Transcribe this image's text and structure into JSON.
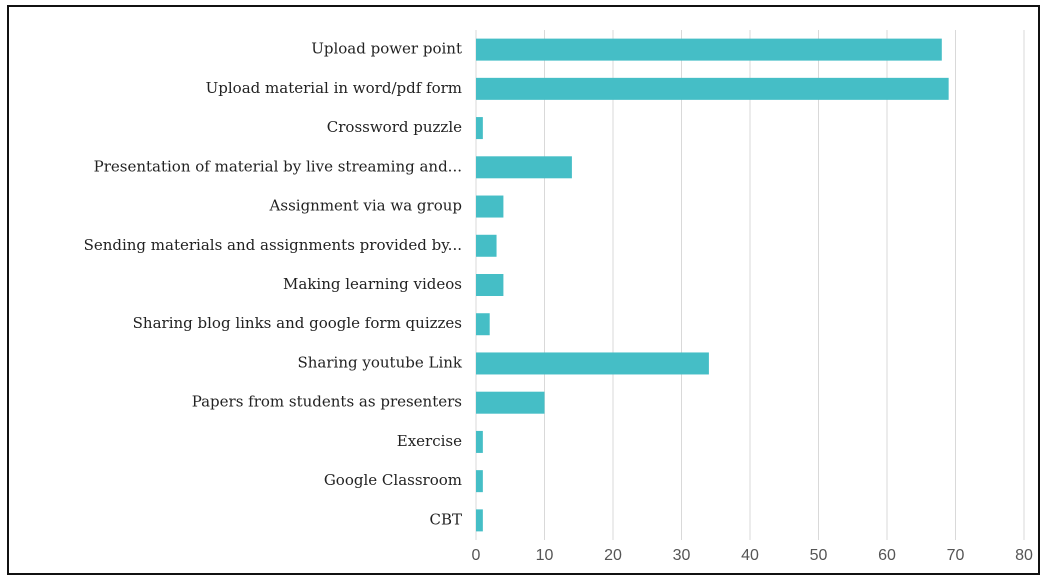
{
  "chart_data": {
    "type": "bar",
    "orientation": "horizontal",
    "categories": [
      "Upload power point",
      "Upload material in word/pdf form",
      "Crossword puzzle",
      "Presentation of material by live streaming and...",
      "Assignment via wa group",
      "Sending materials and assignments provided by...",
      "Making learning videos",
      "Sharing blog links and google form quizzes",
      "Sharing youtube Link",
      "Papers from students as presenters",
      "Exercise",
      "Google Classroom",
      "CBT"
    ],
    "values": [
      68,
      69,
      1,
      14,
      4,
      3,
      4,
      2,
      34,
      10,
      1,
      1,
      1
    ],
    "color": "#45bec6",
    "xlim": [
      0,
      80
    ],
    "xticks": [
      0,
      10,
      20,
      30,
      40,
      50,
      60,
      70,
      80
    ],
    "grid": true
  }
}
